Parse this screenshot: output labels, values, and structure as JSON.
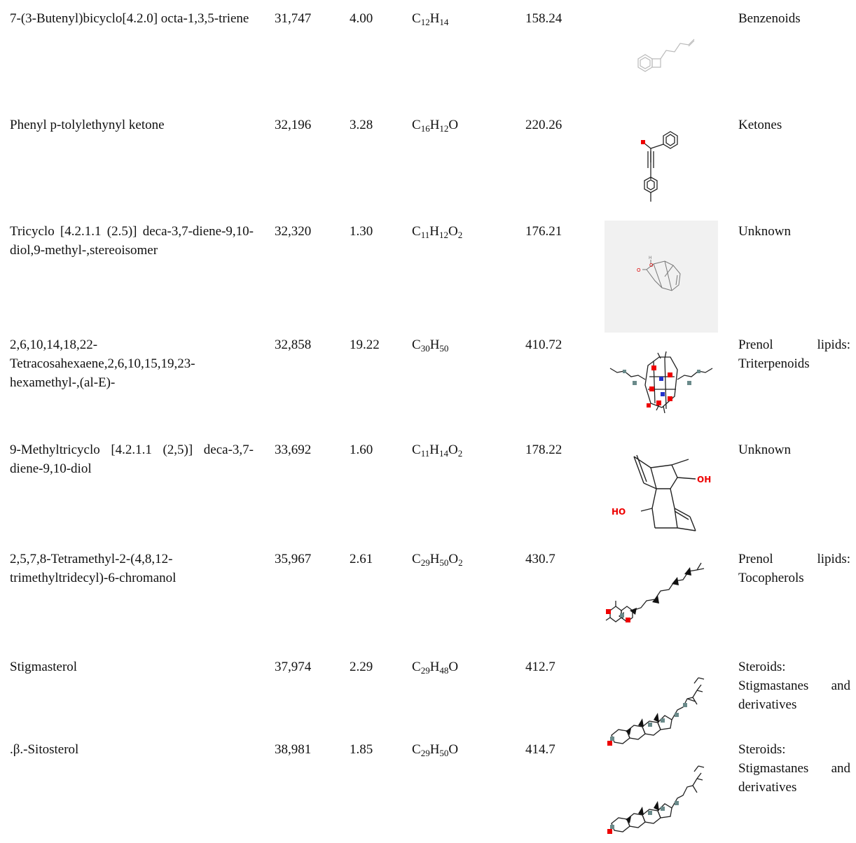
{
  "rows": [
    {
      "name": "7-(3-Butenyl)bicyclo[4.2.0] octa-1,3,5-triene",
      "rt": "31,747",
      "area": "4.00",
      "formula": [
        {
          "t": "C"
        },
        {
          "s": "12"
        },
        {
          "t": "H"
        },
        {
          "s": "14"
        }
      ],
      "mw": "158.24",
      "class": "Benzenoids",
      "structure": "butenyl-benzocyclobutene-structure"
    },
    {
      "name": "Phenyl p-tolylethynyl ketone",
      "rt": "32,196",
      "area": "3.28",
      "formula": [
        {
          "t": "C"
        },
        {
          "s": "16"
        },
        {
          "t": "H"
        },
        {
          "s": "12"
        },
        {
          "t": "O"
        }
      ],
      "mw": "220.26",
      "class": "Ketones",
      "structure": "phenyl-tolylethynyl-ketone-structure"
    },
    {
      "name": "Tricyclo [4.2.1.1 (2.5)] deca-3,7-diene-9,10-diol,9-methyl-,stereoisomer",
      "rt": "32,320",
      "area": "1.30",
      "formula": [
        {
          "t": "C"
        },
        {
          "s": "11"
        },
        {
          "t": "H"
        },
        {
          "s": "12"
        },
        {
          "t": "O"
        },
        {
          "s": "2"
        }
      ],
      "mw": "176.21",
      "class": "Unknown",
      "structure": "tricyclo-diol-stereoisomer-structure"
    },
    {
      "name": "2,6,10,14,18,22-Tetracosahexaene,2,6,10,15,19,23-hexamethyl-,(al-E)-",
      "rt": "32,858",
      "area": "19.22",
      "formula": [
        {
          "t": "C"
        },
        {
          "s": "30"
        },
        {
          "t": "H"
        },
        {
          "s": "50"
        }
      ],
      "mw": "410.72",
      "class": "Prenol lipids: Triterpenoids",
      "structure": "squalene-structure"
    },
    {
      "name": "9-Methyltricyclo [4.2.1.1 (2,5)] deca-3,7-diene-9,10-diol",
      "rt": "33,692",
      "area": "1.60",
      "formula": [
        {
          "t": "C"
        },
        {
          "s": "11"
        },
        {
          "t": "H"
        },
        {
          "s": "14"
        },
        {
          "t": "O"
        },
        {
          "s": "2"
        }
      ],
      "mw": "178.22",
      "class": "Unknown",
      "structure": "methyltricyclo-diol-structure",
      "labels": {
        "oh": "OH",
        "ho": "HO"
      }
    },
    {
      "name": "2,5,7,8-Tetramethyl-2-(4,8,12-trimethyltridecyl)-6-chromanol",
      "rt": "35,967",
      "area": "2.61",
      "formula": [
        {
          "t": "C"
        },
        {
          "s": "29"
        },
        {
          "t": "H"
        },
        {
          "s": "50"
        },
        {
          "t": "O"
        },
        {
          "s": "2"
        }
      ],
      "mw": "430.7",
      "class": "Prenol lipids: Tocopherols",
      "structure": "tocopherol-structure"
    },
    {
      "name": "Stigmasterol",
      "rt": "37,974",
      "area": "2.29",
      "formula": [
        {
          "t": "C"
        },
        {
          "s": "29"
        },
        {
          "t": "H"
        },
        {
          "s": "48"
        },
        {
          "t": "O"
        }
      ],
      "mw": "412.7",
      "class": "Steroids: Stigmastanes and derivatives",
      "structure": "stigmasterol-structure"
    },
    {
      "name": ".β.-Sitosterol",
      "rt": "38,981",
      "area": "1.85",
      "formula": [
        {
          "t": "C"
        },
        {
          "s": "29"
        },
        {
          "t": "H"
        },
        {
          "s": "50"
        },
        {
          "t": "O"
        }
      ],
      "mw": "414.7",
      "class": "Steroids: Stigmastanes and derivatives",
      "structure": "sitosterol-structure"
    }
  ]
}
